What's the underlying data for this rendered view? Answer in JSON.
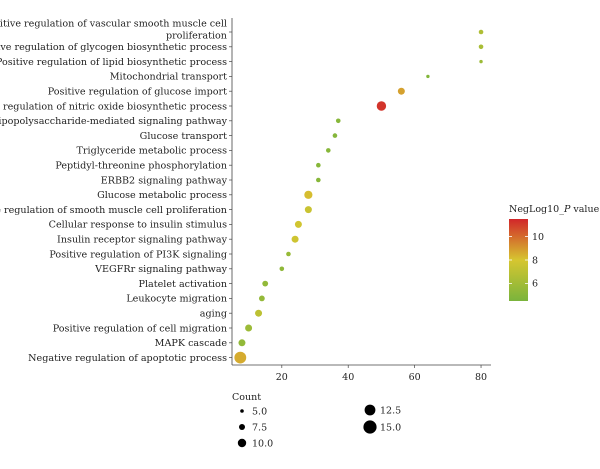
{
  "chart_data": {
    "type": "scatter",
    "title": "",
    "xlabel": "",
    "ylabel": "",
    "xlim": [
      5,
      83
    ],
    "xticks": [
      20,
      40,
      60,
      80
    ],
    "grid": false,
    "categories": [
      "Positive regulation of vascular smooth muscle cell proliferation",
      "Positive regulation of glycogen biosynthetic process",
      "Positive regulation of lipid biosynthetic process",
      "Mitochondrial transport",
      "Positive regulation of glucose import",
      "Positive regulation of nitric oxide biosynthetic process",
      "Lipopolysaccharide-mediated signaling pathway",
      "Glucose transport",
      "Triglyceride metabolic process",
      "Peptidyl-threonine phosphorylation",
      "ERBB2 signaling pathway",
      "Glucose metabolic process",
      "Positive regulation of smooth muscle cell proliferation",
      "Cellular response to insulin stimulus",
      "Insulin receptor signaling pathway",
      "Positive regulation of PI3K signaling",
      "VEGFRr signaling pathway",
      "Platelet activation",
      "Leukocyte migration",
      "aging",
      "Positive regulation of cell migration",
      "MAPK cascade",
      "Negative regulation of apoptotic process"
    ],
    "x": [
      80,
      80,
      80,
      64,
      56,
      50,
      37,
      36,
      34,
      31,
      31,
      28,
      28,
      25,
      24,
      22,
      20,
      15,
      14,
      13,
      10,
      8,
      7.5
    ],
    "count": [
      6,
      6,
      5,
      5,
      8,
      10,
      6,
      6,
      6,
      6,
      6,
      9,
      8,
      8,
      8,
      6,
      6,
      7,
      7,
      8,
      8,
      8,
      12
    ],
    "neglog10_p": [
      6.5,
      6.3,
      5.8,
      4.8,
      8.8,
      11.2,
      5.0,
      4.9,
      5.0,
      5.0,
      5.0,
      8.2,
      7.5,
      7.8,
      7.7,
      5.6,
      5.3,
      5.4,
      5.5,
      7.0,
      5.8,
      5.4,
      8.6
    ],
    "color_legend": {
      "title_prefix": "NegLog10_",
      "title_italic": "P",
      "title_suffix": " value",
      "range": [
        4.5,
        11.5
      ],
      "ticks": [
        6,
        8,
        10
      ],
      "colors": [
        "#7ab43c",
        "#d6c630",
        "#d2262a"
      ]
    },
    "size_legend": {
      "title": "Count",
      "entries": [
        {
          "value": 5.0,
          "label": "5.0"
        },
        {
          "value": 7.5,
          "label": "7.5"
        },
        {
          "value": 10.0,
          "label": "10.0"
        },
        {
          "value": 12.5,
          "label": "12.5"
        },
        {
          "value": 15.0,
          "label": "15.0"
        }
      ]
    }
  }
}
